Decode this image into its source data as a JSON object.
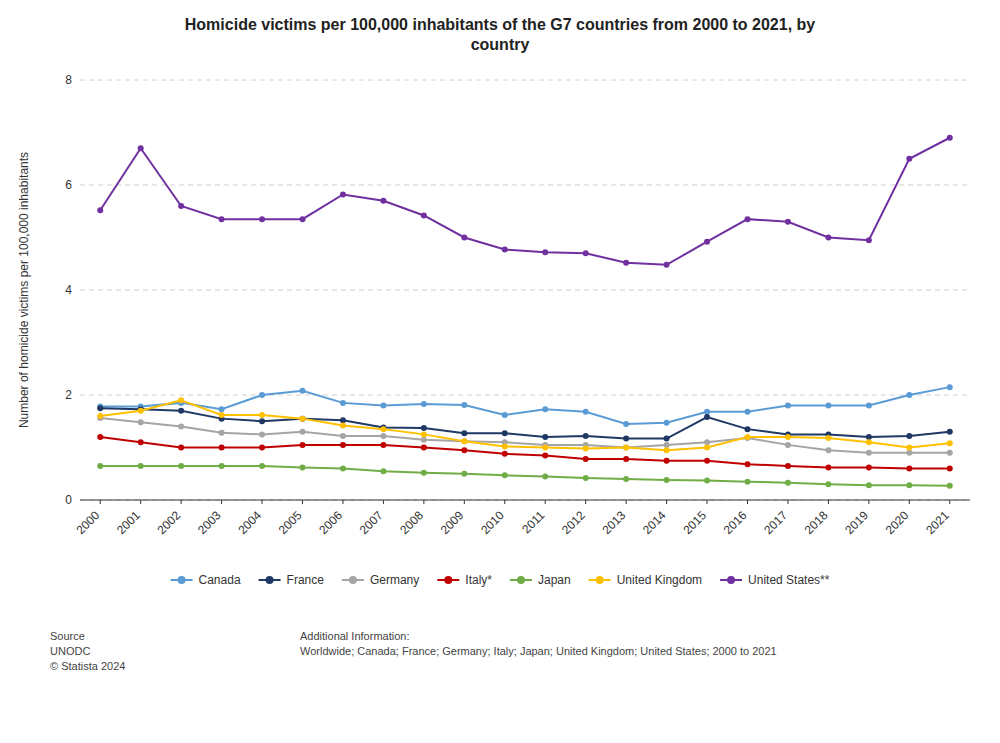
{
  "chart_data": {
    "type": "line",
    "title": "Homicide victims per 100,000 inhabitants of the G7 countries from 2000 to 2021, by\ncountry",
    "y_label": "Number of homicide victims per 100,000 inhabitants",
    "x": [
      2000,
      2001,
      2002,
      2003,
      2004,
      2005,
      2006,
      2007,
      2008,
      2009,
      2010,
      2011,
      2012,
      2013,
      2014,
      2015,
      2016,
      2017,
      2018,
      2019,
      2020,
      2021
    ],
    "series": [
      {
        "name": "Canada",
        "color": "#5B9BD5",
        "values": [
          1.78,
          1.78,
          1.85,
          1.73,
          2.0,
          2.08,
          1.85,
          1.8,
          1.83,
          1.81,
          1.62,
          1.73,
          1.68,
          1.45,
          1.47,
          1.68,
          1.68,
          1.8,
          1.8,
          1.8,
          2.0,
          2.15
        ]
      },
      {
        "name": "France",
        "color": "#1F3864",
        "values": [
          1.75,
          1.73,
          1.7,
          1.55,
          1.5,
          1.55,
          1.52,
          1.38,
          1.37,
          1.27,
          1.27,
          1.2,
          1.22,
          1.17,
          1.17,
          1.58,
          1.35,
          1.25,
          1.25,
          1.2,
          1.22,
          1.3
        ]
      },
      {
        "name": "Germany",
        "color": "#A5A5A5",
        "values": [
          1.56,
          1.48,
          1.4,
          1.28,
          1.25,
          1.3,
          1.22,
          1.22,
          1.15,
          1.12,
          1.1,
          1.05,
          1.05,
          1.0,
          1.05,
          1.1,
          1.18,
          1.05,
          0.95,
          0.9,
          0.9,
          0.9
        ]
      },
      {
        "name": "Italy*",
        "color": "#C00000",
        "values": [
          1.2,
          1.1,
          1.0,
          1.0,
          1.0,
          1.05,
          1.05,
          1.05,
          1.0,
          0.95,
          0.88,
          0.85,
          0.78,
          0.78,
          0.75,
          0.75,
          0.68,
          0.65,
          0.62,
          0.62,
          0.6,
          0.6
        ]
      },
      {
        "name": "Japan",
        "color": "#70AD47",
        "values": [
          0.65,
          0.65,
          0.65,
          0.65,
          0.65,
          0.62,
          0.6,
          0.55,
          0.52,
          0.5,
          0.47,
          0.45,
          0.42,
          0.4,
          0.38,
          0.37,
          0.35,
          0.33,
          0.3,
          0.28,
          0.28,
          0.27
        ]
      },
      {
        "name": "United Kingdom",
        "color": "#FFC000",
        "values": [
          1.6,
          1.7,
          1.9,
          1.62,
          1.62,
          1.55,
          1.42,
          1.35,
          1.25,
          1.12,
          1.02,
          1.0,
          0.98,
          1.0,
          0.95,
          1.0,
          1.2,
          1.2,
          1.18,
          1.1,
          1.0,
          1.08
        ]
      },
      {
        "name": "United States**",
        "color": "#7030A0",
        "values": [
          5.52,
          6.7,
          5.6,
          5.35,
          5.35,
          5.35,
          5.82,
          5.7,
          5.42,
          5.0,
          4.77,
          4.72,
          4.7,
          4.52,
          4.48,
          4.92,
          5.35,
          5.3,
          5.0,
          4.95,
          6.5,
          6.9
        ]
      }
    ],
    "xlim": [
      1999.5,
      2021.5
    ],
    "xticks": [
      2000,
      2001,
      2002,
      2003,
      2004,
      2005,
      2006,
      2007,
      2008,
      2009,
      2010,
      2011,
      2012,
      2013,
      2014,
      2015,
      2016,
      2017,
      2018,
      2019,
      2020,
      2021
    ],
    "ylim": [
      0,
      8
    ],
    "yticks": [
      0,
      2,
      4,
      6,
      8
    ],
    "grid": true,
    "legend": "bottom",
    "marker": "circle",
    "line_style": "solid",
    "annotations": [
      "Source\nUNODC\n© Statista 2024",
      "Additional Information:\nWorldwide; Canada; France; Germany; Italy; Japan; United Kingdom; United States; 2000 to 2021"
    ]
  }
}
